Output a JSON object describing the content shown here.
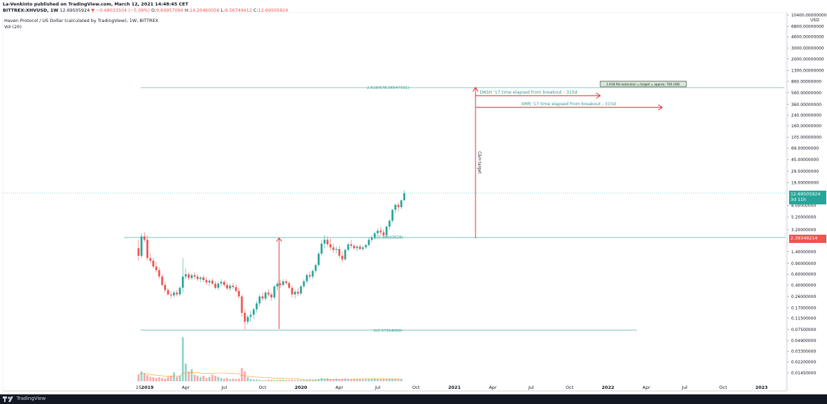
{
  "header": {
    "publisher_line": "La-Venkinto published on TradingView.com, March 12, 2021 14:48:45 CET",
    "symbol": "BITTREX:XHVUSD, 1W",
    "last": "12.69505924",
    "change": "▼ −0.68033504 (−5.09%)",
    "open_label": "O:",
    "open": "9.69957094",
    "high_label": "H:",
    "high": "14.20460056",
    "low_label": "L:",
    "low": "9.56749412",
    "close_label": "C:",
    "close": "12.69505924"
  },
  "legend": {
    "title": "Haven Protocol / US Dollar (calculated by TradingView), 1W, BITTREX",
    "volume": "Vol (20)"
  },
  "price_axis": {
    "currency": "USD",
    "current_price": "12.69505924",
    "countdown": "3d 11h",
    "level_price": "2.39349214"
  },
  "footer": {
    "brand": "TradingView"
  },
  "colors": {
    "up": "#26a69a",
    "down": "#ef5350",
    "fib": "#2a9d8f",
    "annotation": "#e0191f",
    "volume_ma": "#ff9800"
  },
  "chart_data": {
    "type": "candlestick",
    "y_scale": "log",
    "y_ticks": [
      "10400.00000000",
      "6800.00000000",
      "4600.00000000",
      "3000.00000000",
      "2000.00000000",
      "1300.00000000",
      "860.00000000",
      "560.00000000",
      "360.00000000",
      "240.00000000",
      "160.00000000",
      "105.00000000",
      "69.00000000",
      "45.00000000",
      "29.00000000",
      "19.00000000",
      "8.00000000",
      "5.20000000",
      "3.20000000",
      "1.40000000",
      "0.90000000",
      "0.60000000",
      "0.40000000",
      "0.26000000",
      "0.17000000",
      "0.11500000",
      "0.07500000",
      "0.04900000",
      "0.03300000",
      "0.02200000",
      "0.01450000"
    ],
    "y_tick_values": [
      10400,
      6800,
      4600,
      3000,
      2000,
      1300,
      860,
      560,
      360,
      240,
      160,
      105,
      69,
      45,
      29,
      19,
      8,
      5.2,
      3.2,
      1.4,
      0.9,
      0.6,
      0.4,
      0.26,
      0.17,
      0.115,
      0.075,
      0.049,
      0.033,
      0.022,
      0.0145
    ],
    "x_ticks": [
      "15",
      "2019",
      "Apr",
      "Jul",
      "Oct",
      "2020",
      "Apr",
      "Jul",
      "Oct",
      "2021",
      "Apr",
      "Jul",
      "Oct",
      "2022",
      "Apr",
      "Jul",
      "Oct",
      "2023"
    ],
    "x_tick_weeks": [
      0,
      3,
      16,
      29,
      42,
      55,
      68,
      81,
      94,
      107,
      120,
      133,
      146,
      159,
      172,
      185,
      198,
      211
    ],
    "candles": [
      [
        1.6,
        2.2,
        1.0,
        1.2
      ],
      [
        1.2,
        2.8,
        1.1,
        2.5
      ],
      [
        2.5,
        2.9,
        2.0,
        2.2
      ],
      [
        2.2,
        2.6,
        1.0,
        1.1
      ],
      [
        1.1,
        1.3,
        0.9,
        1.0
      ],
      [
        1.0,
        1.1,
        0.75,
        0.8
      ],
      [
        0.8,
        0.95,
        0.65,
        0.7
      ],
      [
        0.7,
        0.78,
        0.5,
        0.55
      ],
      [
        0.55,
        0.6,
        0.38,
        0.4
      ],
      [
        0.4,
        0.45,
        0.3,
        0.33
      ],
      [
        0.33,
        0.36,
        0.27,
        0.28
      ],
      [
        0.28,
        0.31,
        0.24,
        0.27
      ],
      [
        0.27,
        0.32,
        0.25,
        0.3
      ],
      [
        0.3,
        0.33,
        0.26,
        0.28
      ],
      [
        0.28,
        0.38,
        0.26,
        0.36
      ],
      [
        0.36,
        1.1,
        0.3,
        0.55
      ],
      [
        0.55,
        0.75,
        0.5,
        0.6
      ],
      [
        0.6,
        0.65,
        0.48,
        0.52
      ],
      [
        0.52,
        0.62,
        0.48,
        0.58
      ],
      [
        0.58,
        0.64,
        0.5,
        0.55
      ],
      [
        0.55,
        0.6,
        0.46,
        0.5
      ],
      [
        0.5,
        0.56,
        0.44,
        0.53
      ],
      [
        0.53,
        0.58,
        0.45,
        0.48
      ],
      [
        0.48,
        0.54,
        0.4,
        0.44
      ],
      [
        0.44,
        0.5,
        0.38,
        0.47
      ],
      [
        0.47,
        0.52,
        0.4,
        0.42
      ],
      [
        0.42,
        0.46,
        0.34,
        0.36
      ],
      [
        0.36,
        0.45,
        0.33,
        0.42
      ],
      [
        0.42,
        0.5,
        0.38,
        0.45
      ],
      [
        0.45,
        0.48,
        0.37,
        0.4
      ],
      [
        0.4,
        0.44,
        0.33,
        0.35
      ],
      [
        0.35,
        0.42,
        0.32,
        0.39
      ],
      [
        0.39,
        0.44,
        0.34,
        0.37
      ],
      [
        0.37,
        0.41,
        0.3,
        0.32
      ],
      [
        0.32,
        0.36,
        0.24,
        0.26
      ],
      [
        0.26,
        0.28,
        0.12,
        0.14
      ],
      [
        0.14,
        0.16,
        0.075,
        0.1
      ],
      [
        0.1,
        0.13,
        0.09,
        0.12
      ],
      [
        0.12,
        0.15,
        0.1,
        0.13
      ],
      [
        0.13,
        0.17,
        0.11,
        0.16
      ],
      [
        0.16,
        0.22,
        0.14,
        0.2
      ],
      [
        0.2,
        0.28,
        0.18,
        0.26
      ],
      [
        0.26,
        0.3,
        0.22,
        0.24
      ],
      [
        0.24,
        0.32,
        0.22,
        0.3
      ],
      [
        0.3,
        0.34,
        0.26,
        0.28
      ],
      [
        0.28,
        0.3,
        0.22,
        0.25
      ],
      [
        0.25,
        0.4,
        0.23,
        0.38
      ],
      [
        0.38,
        0.46,
        0.33,
        0.42
      ],
      [
        0.42,
        0.48,
        0.36,
        0.4
      ],
      [
        0.4,
        0.5,
        0.38,
        0.46
      ],
      [
        0.46,
        0.5,
        0.4,
        0.43
      ],
      [
        0.43,
        0.46,
        0.34,
        0.36
      ],
      [
        0.36,
        0.4,
        0.25,
        0.28
      ],
      [
        0.28,
        0.34,
        0.24,
        0.31
      ],
      [
        0.31,
        0.36,
        0.26,
        0.29
      ],
      [
        0.29,
        0.4,
        0.27,
        0.38
      ],
      [
        0.38,
        0.5,
        0.35,
        0.46
      ],
      [
        0.46,
        0.62,
        0.42,
        0.58
      ],
      [
        0.58,
        0.66,
        0.5,
        0.55
      ],
      [
        0.55,
        0.72,
        0.5,
        0.68
      ],
      [
        0.68,
        0.9,
        0.62,
        0.85
      ],
      [
        0.85,
        1.4,
        0.8,
        1.3
      ],
      [
        1.3,
        2.2,
        1.2,
        1.9
      ],
      [
        1.9,
        2.6,
        1.6,
        2.2
      ],
      [
        2.2,
        2.5,
        1.7,
        1.85
      ],
      [
        1.85,
        2.3,
        1.5,
        1.65
      ],
      [
        1.65,
        1.9,
        1.35,
        1.5
      ],
      [
        1.5,
        1.7,
        1.3,
        1.55
      ],
      [
        1.55,
        1.75,
        1.1,
        1.2
      ],
      [
        1.2,
        1.4,
        0.95,
        1.05
      ],
      [
        1.05,
        1.6,
        1.0,
        1.5
      ],
      [
        1.5,
        2.0,
        1.4,
        1.85
      ],
      [
        1.85,
        2.2,
        1.6,
        1.75
      ],
      [
        1.75,
        1.9,
        1.5,
        1.6
      ],
      [
        1.6,
        1.8,
        1.45,
        1.7
      ],
      [
        1.7,
        1.85,
        1.5,
        1.55
      ],
      [
        1.55,
        1.75,
        1.45,
        1.65
      ],
      [
        1.65,
        1.9,
        1.55,
        1.8
      ],
      [
        1.8,
        2.4,
        1.7,
        2.2
      ],
      [
        2.2,
        2.6,
        2.0,
        2.4
      ],
      [
        2.4,
        3.0,
        2.2,
        2.8
      ],
      [
        2.8,
        3.4,
        2.5,
        3.1
      ],
      [
        3.1,
        3.6,
        2.6,
        2.9
      ],
      [
        2.9,
        3.2,
        2.4,
        2.6
      ],
      [
        2.6,
        3.8,
        2.4,
        3.6
      ],
      [
        3.6,
        4.8,
        3.2,
        4.5
      ],
      [
        4.5,
        7.0,
        4.2,
        6.8
      ],
      [
        6.8,
        8.6,
        6.0,
        8.2
      ],
      [
        8.2,
        9.0,
        6.4,
        7.5
      ],
      [
        7.5,
        10.0,
        7.0,
        9.7
      ],
      [
        9.7,
        14.2,
        9.57,
        12.7
      ]
    ],
    "candle_start_week": 0,
    "volume_bars_note": "relative",
    "volume": [
      0.3,
      0.45,
      0.35,
      0.28,
      0.2,
      0.18,
      0.15,
      0.18,
      0.15,
      0.12,
      0.2,
      0.25,
      0.4,
      0.2,
      0.25,
      2.0,
      0.8,
      0.45,
      0.55,
      0.3,
      0.25,
      0.2,
      0.25,
      0.15,
      0.2,
      0.3,
      0.25,
      0.2,
      0.15,
      0.12,
      0.15,
      0.1,
      0.12,
      0.1,
      0.12,
      0.6,
      0.45,
      0.18,
      0.1,
      0.08,
      0.08,
      0.06,
      0.05,
      0.05,
      0.07,
      0.06,
      0.05,
      0.05,
      0.06,
      0.07,
      0.06,
      0.05,
      0.07,
      0.05,
      0.06,
      0.05,
      0.07,
      0.06,
      0.08,
      0.07,
      0.08,
      0.1,
      0.15,
      0.12,
      0.14,
      0.1,
      0.1,
      0.12,
      0.1,
      0.1,
      0.12,
      0.11,
      0.1,
      0.1,
      0.09,
      0.1,
      0.08,
      0.09,
      0.1,
      0.09,
      0.12,
      0.1,
      0.09,
      0.1,
      0.1,
      0.12,
      0.11,
      0.1,
      0.09,
      0.1
    ],
    "annotations": {
      "fib_level_2618": "2.618(678.96547931)",
      "fib_level_1": "1(2.38933528)",
      "fib_level_0": "0(0.07264000)",
      "fib_note": "2.618 Fib extension = target = approx. 700 USD",
      "dash_label": "DASH '17 time elapsed from breakout - 315d",
      "xmr_label": "XMR '17 time elapsed from breakout - 315d",
      "cup_target": "C&H target"
    },
    "fib_values": {
      "f2618": 678.96547931,
      "f1": 2.38933528,
      "f0": 0.07264
    },
    "level_line_value": 2.39349214
  }
}
